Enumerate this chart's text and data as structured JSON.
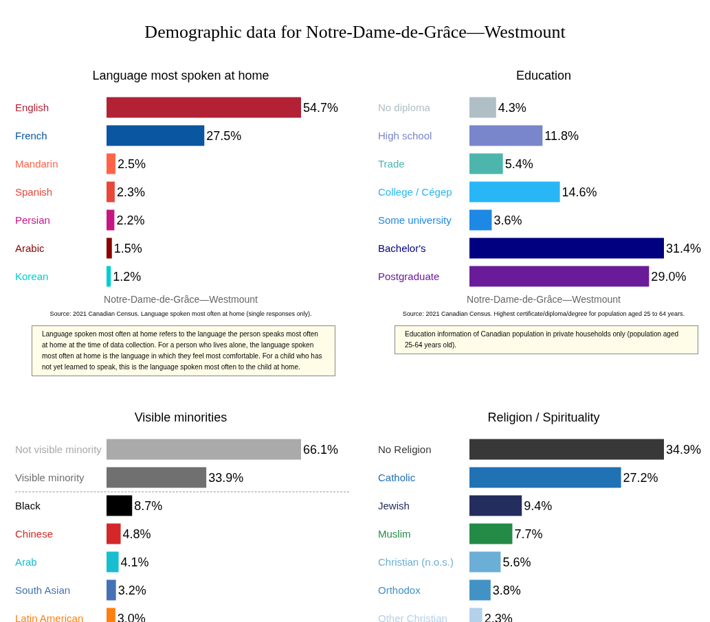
{
  "chart_data": [
    {
      "type": "other",
      "title": "Demographic data for Notre-Dame-de-Grâce—Westmount"
    },
    {
      "type": "bar",
      "orientation": "horizontal",
      "title": "Language most spoken at home",
      "categories": [
        "English",
        "French",
        "Mandarin",
        "Spanish",
        "Persian",
        "Arabic",
        "Korean"
      ],
      "values": [
        54.7,
        27.5,
        2.5,
        2.3,
        2.2,
        1.5,
        1.2
      ],
      "value_labels": [
        "54.7%",
        "27.5%",
        "2.5%",
        "2.3%",
        "2.2%",
        "1.5%",
        "1.2%"
      ],
      "colors": [
        "#b22234",
        "#0a56a0",
        "#ff6347",
        "#e8473a",
        "#c71585",
        "#8b0000",
        "#00ced1"
      ],
      "annotations": [
        "Notre-Dame-de-Grâce—Westmount",
        "Source: 2021 Canadian Census. Language spoken most often at home (single responses only).",
        "Language spoken most often at home refers to the language the person speaks most often at home at the time of data collection. For a person who lives alone, the language spoken most often at home is the language in which they feel most comfortable. For a child who has not yet learned to speak, this is the language spoken most often to the child at home."
      ]
    },
    {
      "type": "bar",
      "orientation": "horizontal",
      "title": "Education",
      "categories": [
        "No diploma",
        "High school",
        "Trade",
        "College / Cégep",
        "Some university",
        "Bachelor's",
        "Postgraduate"
      ],
      "values": [
        4.3,
        11.8,
        5.4,
        14.6,
        3.6,
        31.4,
        29.0
      ],
      "value_labels": [
        "4.3%",
        "11.8%",
        "5.4%",
        "14.6%",
        "3.6%",
        "31.4%",
        "29.0%"
      ],
      "colors": [
        "#b0bec5",
        "#7986cb",
        "#4db6ac",
        "#29b6f6",
        "#1e88e5",
        "#000080",
        "#6a1b9a"
      ],
      "annotations": [
        "Notre-Dame-de-Grâce—Westmount",
        "Source: 2021 Canadian Census. Highest certificate/diploma/degree for population aged 25 to 64 years.",
        "Education information of Canadian population in private households only (population aged 25-64 years old)."
      ]
    },
    {
      "type": "bar",
      "orientation": "horizontal",
      "title": "Visible minorities",
      "categories": [
        "Not visible minority",
        "Visible minority",
        "Black",
        "Chinese",
        "Arab",
        "South Asian",
        "Latin American"
      ],
      "values": [
        66.1,
        33.9,
        8.7,
        4.8,
        4.1,
        3.2,
        3.0
      ],
      "value_labels": [
        "66.1%",
        "33.9%",
        "8.7%",
        "4.8%",
        "4.1%",
        "3.2%",
        "3.0%"
      ],
      "colors": [
        "#aaaaaa",
        "#707070",
        "#000000",
        "#d62728",
        "#17becf",
        "#4472b4",
        "#ff7f0e"
      ]
    },
    {
      "type": "bar",
      "orientation": "horizontal",
      "title": "Religion / Spirituality",
      "categories": [
        "No Religion",
        "Catholic",
        "Jewish",
        "Muslim",
        "Christian (n.o.s.)",
        "Orthodox",
        "Other Christian"
      ],
      "values": [
        34.9,
        27.2,
        9.4,
        7.7,
        5.6,
        3.8,
        2.3
      ],
      "value_labels": [
        "34.9%",
        "27.2%",
        "9.4%",
        "7.7%",
        "5.6%",
        "3.8%",
        "2.3%"
      ],
      "colors": [
        "#383838",
        "#2171b5",
        "#232d5e",
        "#238b45",
        "#6baed6",
        "#4292c6",
        "#b3d1ea"
      ]
    }
  ]
}
